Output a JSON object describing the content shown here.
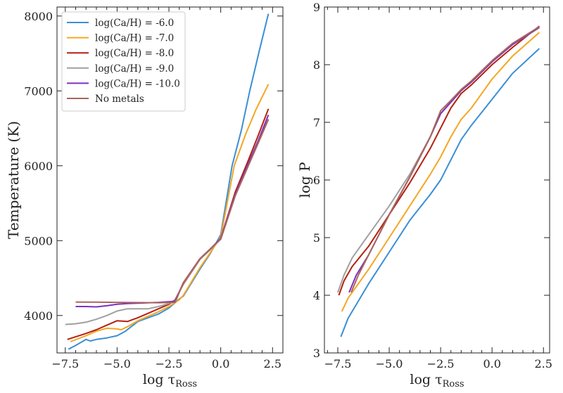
{
  "chart_data": [
    {
      "type": "line",
      "xlabel": {
        "text": "log τ",
        "sub": "Ross"
      },
      "ylabel": "Temperature (K)",
      "xlim": [
        -7.9,
        3.0
      ],
      "ylim": [
        3500,
        8120
      ],
      "xticks": [
        -7.5,
        -5.0,
        -2.5,
        0.0,
        2.5
      ],
      "xtick_labels": [
        "−7.5",
        "−5.0",
        "−2.5",
        "0.0",
        "2.5"
      ],
      "yticks": [
        4000,
        5000,
        6000,
        7000,
        8000
      ],
      "ytick_labels": [
        "4000",
        "5000",
        "6000",
        "7000",
        "8000"
      ],
      "grid": false,
      "legend": "top-left",
      "series": [
        {
          "name": "log(Ca/H) = -6.0",
          "color": "#3a8fd6",
          "x": [
            -7.35,
            -7.0,
            -6.5,
            -6.3,
            -6.0,
            -5.5,
            -5.0,
            -4.6,
            -4.0,
            -3.5,
            -3.0,
            -2.5,
            -2.0,
            -1.8,
            -1.0,
            -0.5,
            0.0,
            0.55,
            1.0,
            1.4,
            1.9,
            2.3
          ],
          "y": [
            3550,
            3600,
            3680,
            3660,
            3680,
            3700,
            3730,
            3790,
            3920,
            3970,
            4020,
            4100,
            4220,
            4260,
            4620,
            4830,
            5080,
            6000,
            6480,
            7000,
            7580,
            8030
          ]
        },
        {
          "name": "log(Ca/H) = -7.0",
          "color": "#f5a623",
          "x": [
            -7.25,
            -6.5,
            -6.0,
            -5.5,
            -5.0,
            -4.8,
            -4.5,
            -4.0,
            -3.5,
            -3.0,
            -2.5,
            -2.0,
            -1.8,
            -1.0,
            -0.5,
            0.0,
            0.65,
            1.2,
            1.7,
            2.3
          ],
          "y": [
            3650,
            3730,
            3790,
            3830,
            3820,
            3810,
            3850,
            3930,
            3990,
            4050,
            4120,
            4210,
            4270,
            4640,
            4840,
            5050,
            6000,
            6420,
            6750,
            7090
          ]
        },
        {
          "name": "log(Ca/H) = -8.0",
          "color": "#b5200f",
          "x": [
            -7.4,
            -6.5,
            -6.0,
            -5.5,
            -5.0,
            -4.5,
            -4.0,
            -3.5,
            -3.0,
            -2.5,
            -2.2,
            -1.8,
            -1.0,
            -0.5,
            0.0,
            0.7,
            1.3,
            1.8,
            2.3
          ],
          "y": [
            3680,
            3760,
            3810,
            3870,
            3930,
            3920,
            3970,
            4030,
            4090,
            4150,
            4210,
            4420,
            4750,
            4880,
            5030,
            5650,
            6050,
            6400,
            6760
          ]
        },
        {
          "name": "log(Ca/H) = -9.0",
          "color": "#a0a0a0",
          "x": [
            -7.5,
            -7.0,
            -6.5,
            -6.0,
            -5.5,
            -5.0,
            -4.5,
            -4.0,
            -3.5,
            -3.0,
            -2.5,
            -2.2,
            -1.8,
            -1.0,
            -0.5,
            0.0,
            0.7,
            1.3,
            1.8,
            2.3
          ],
          "y": [
            3880,
            3890,
            3910,
            3950,
            4000,
            4060,
            4090,
            4090,
            4090,
            4120,
            4160,
            4200,
            4430,
            4750,
            4880,
            5020,
            5600,
            5980,
            6300,
            6620
          ]
        },
        {
          "name": "log(Ca/H) = -10.0",
          "color": "#7e2fc0",
          "x": [
            -7.0,
            -6.5,
            -6.0,
            -5.5,
            -5.0,
            -4.5,
            -4.0,
            -3.0,
            -2.2,
            -1.8,
            -1.0,
            -0.5,
            0.0,
            0.7,
            1.3,
            1.8,
            2.3
          ],
          "y": [
            4120,
            4120,
            4115,
            4130,
            4150,
            4160,
            4165,
            4175,
            4190,
            4440,
            4760,
            4890,
            5030,
            5620,
            6010,
            6330,
            6680
          ]
        },
        {
          "name": "No metals",
          "color": "#a8665b",
          "x": [
            -7.0,
            -6.0,
            -5.0,
            -4.0,
            -3.0,
            -2.2,
            -1.8,
            -1.0,
            -0.5,
            0.0,
            0.7,
            1.3,
            1.8,
            2.3
          ],
          "y": [
            4180,
            4178,
            4175,
            4172,
            4170,
            4175,
            4440,
            4760,
            4890,
            5020,
            5600,
            5980,
            6300,
            6620
          ]
        }
      ]
    },
    {
      "type": "line",
      "xlabel": {
        "text": "log τ",
        "sub": "Ross"
      },
      "ylabel": "log P",
      "xlim": [
        -8.15,
        2.8
      ],
      "ylim": [
        3,
        9
      ],
      "xticks": [
        -7.5,
        -5.0,
        -2.5,
        0.0,
        2.5
      ],
      "xtick_labels": [
        "−7.5",
        "−5.0",
        "−2.5",
        "0.0",
        "2.5"
      ],
      "yticks": [
        3,
        4,
        5,
        6,
        7,
        8,
        9
      ],
      "ytick_labels": [
        "3",
        "4",
        "5",
        "6",
        "7",
        "8",
        "9"
      ],
      "grid": false,
      "series": [
        {
          "color": "#3a8fd6",
          "x": [
            -7.35,
            -7.0,
            -6.5,
            -6.0,
            -5.0,
            -4.0,
            -3.0,
            -2.5,
            -2.0,
            -1.5,
            -1.0,
            0.0,
            1.0,
            2.3
          ],
          "y": [
            3.28,
            3.6,
            3.9,
            4.2,
            4.75,
            5.3,
            5.75,
            6.0,
            6.35,
            6.7,
            6.95,
            7.4,
            7.85,
            8.28
          ]
        },
        {
          "color": "#f5a623",
          "x": [
            -7.3,
            -7.0,
            -6.5,
            -6.0,
            -5.0,
            -4.0,
            -3.0,
            -2.5,
            -2.0,
            -1.5,
            -1.0,
            0.0,
            1.0,
            2.3
          ],
          "y": [
            3.72,
            3.95,
            4.2,
            4.45,
            5.0,
            5.55,
            6.1,
            6.4,
            6.75,
            7.05,
            7.25,
            7.75,
            8.15,
            8.56
          ]
        },
        {
          "color": "#b5200f",
          "x": [
            -7.45,
            -7.2,
            -6.8,
            -6.0,
            -5.0,
            -4.0,
            -3.0,
            -2.5,
            -2.0,
            -1.5,
            -1.0,
            0.0,
            1.0,
            2.3
          ],
          "y": [
            4.0,
            4.25,
            4.5,
            4.85,
            5.4,
            5.95,
            6.55,
            6.9,
            7.25,
            7.5,
            7.65,
            8.0,
            8.3,
            8.67
          ]
        },
        {
          "color": "#a0a0a0",
          "x": [
            -7.5,
            -7.2,
            -6.8,
            -6.0,
            -5.0,
            -4.0,
            -3.0,
            -2.5,
            -2.0,
            -1.5,
            -1.0,
            0.0,
            1.0,
            2.3
          ],
          "y": [
            4.05,
            4.35,
            4.65,
            5.05,
            5.55,
            6.1,
            6.75,
            7.15,
            7.35,
            7.55,
            7.7,
            8.05,
            8.35,
            8.64
          ]
        },
        {
          "color": "#7e2fc0",
          "x": [
            -6.95,
            -6.6,
            -6.0,
            -5.0,
            -4.0,
            -3.0,
            -2.5,
            -2.0,
            -1.5,
            -1.0,
            0.0,
            1.0,
            2.3
          ],
          "y": [
            4.05,
            4.35,
            4.7,
            5.4,
            6.05,
            6.75,
            7.15,
            7.35,
            7.55,
            7.7,
            8.05,
            8.35,
            8.65
          ]
        },
        {
          "color": "#a8665b",
          "x": [
            -6.85,
            -6.5,
            -6.0,
            -5.0,
            -4.0,
            -3.0,
            -2.5,
            -2.0,
            -1.5,
            -1.0,
            0.0,
            1.0,
            2.3
          ],
          "y": [
            4.05,
            4.35,
            4.7,
            5.4,
            6.05,
            6.75,
            7.2,
            7.38,
            7.57,
            7.72,
            8.07,
            8.37,
            8.66
          ]
        }
      ]
    }
  ]
}
